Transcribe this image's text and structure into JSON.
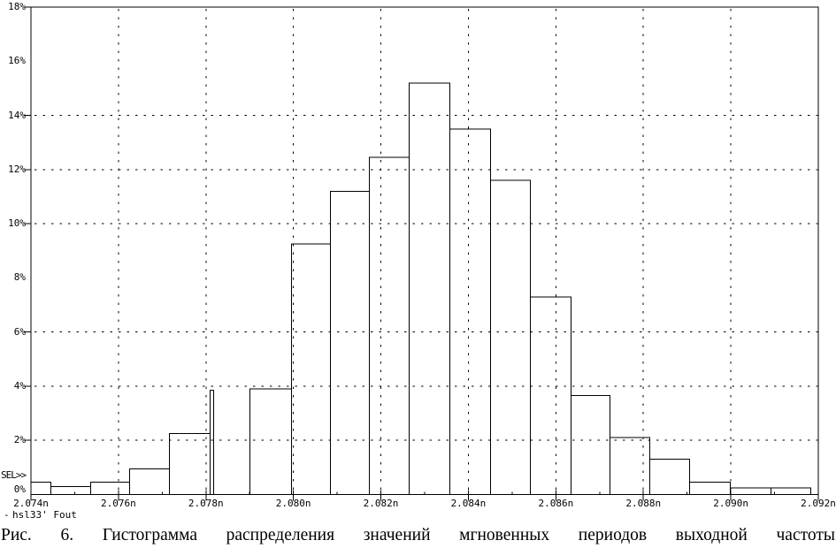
{
  "figure": {
    "sel_label": "SEL>>",
    "trace_legend": {
      "marker": "-",
      "label": "hsl33' Fout"
    },
    "caption": "Рис. 6. Гистограмма распределения значений мгновенных периодов выходной частоты"
  },
  "chart_data": {
    "type": "bar",
    "subtype": "histogram-outline",
    "title": "",
    "xlabel": "",
    "ylabel": "",
    "x_unit": "n",
    "xlim": [
      2.074,
      2.092
    ],
    "ylim_pct": [
      0,
      18
    ],
    "grid": "dashed",
    "legend_position": "bottom-left",
    "x_ticks": [
      {
        "value": 2.074,
        "label": "2.074n"
      },
      {
        "value": 2.076,
        "label": "2.076n"
      },
      {
        "value": 2.078,
        "label": "2.078n"
      },
      {
        "value": 2.08,
        "label": "2.080n"
      },
      {
        "value": 2.082,
        "label": "2.082n"
      },
      {
        "value": 2.084,
        "label": "2.084n"
      },
      {
        "value": 2.086,
        "label": "2.086n"
      },
      {
        "value": 2.088,
        "label": "2.088n"
      },
      {
        "value": 2.09,
        "label": "2.090n"
      },
      {
        "value": 2.092,
        "label": "2.092n"
      }
    ],
    "x_minor_ticks": [
      2.075,
      2.077,
      2.079,
      2.081,
      2.083,
      2.085,
      2.087,
      2.089,
      2.091
    ],
    "y_ticks": [
      {
        "pct": 18,
        "label": "18%"
      },
      {
        "pct": 16,
        "label": "16%"
      },
      {
        "pct": 14,
        "label": "14%"
      },
      {
        "pct": 12,
        "label": "12%"
      },
      {
        "pct": 10,
        "label": "10%"
      },
      {
        "pct": 8,
        "label": "8%"
      },
      {
        "pct": 6,
        "label": "6%"
      },
      {
        "pct": 4,
        "label": "4%"
      },
      {
        "pct": 2,
        "label": "2%"
      },
      {
        "pct": 0,
        "label": "0%"
      }
    ],
    "y_tick_marks_pct": [
      18,
      14,
      12,
      10,
      6,
      4,
      2
    ],
    "h_gridlines_pct": [
      14,
      12,
      10,
      6,
      4,
      2
    ],
    "v_gridlines": [
      2.076,
      2.078,
      2.08,
      2.082,
      2.084,
      2.086,
      2.088,
      2.09
    ],
    "bins": [
      {
        "x0": 2.074,
        "x1": 2.07445,
        "pct": 0.45
      },
      {
        "x0": 2.07445,
        "x1": 2.07537,
        "pct": 0.3
      },
      {
        "x0": 2.07537,
        "x1": 2.07626,
        "pct": 0.45
      },
      {
        "x0": 2.07626,
        "x1": 2.07717,
        "pct": 0.95
      },
      {
        "x0": 2.07717,
        "x1": 2.0781,
        "pct": 2.25
      },
      {
        "x0": 2.0781,
        "x1": 2.07818,
        "pct": 3.85
      },
      {
        "x0": 2.07818,
        "x1": 2.07901,
        "pct": 0.0
      },
      {
        "x0": 2.07901,
        "x1": 2.07996,
        "pct": 3.9
      },
      {
        "x0": 2.07996,
        "x1": 2.08085,
        "pct": 9.25
      },
      {
        "x0": 2.08085,
        "x1": 2.08174,
        "pct": 11.2
      },
      {
        "x0": 2.08174,
        "x1": 2.08265,
        "pct": 12.45
      },
      {
        "x0": 2.08265,
        "x1": 2.08358,
        "pct": 15.2
      },
      {
        "x0": 2.08358,
        "x1": 2.08451,
        "pct": 13.5
      },
      {
        "x0": 2.08451,
        "x1": 2.08542,
        "pct": 11.6
      },
      {
        "x0": 2.08542,
        "x1": 2.08635,
        "pct": 7.3
      },
      {
        "x0": 2.08635,
        "x1": 2.08724,
        "pct": 3.65
      },
      {
        "x0": 2.08724,
        "x1": 2.08815,
        "pct": 2.1
      },
      {
        "x0": 2.08815,
        "x1": 2.08906,
        "pct": 1.3
      },
      {
        "x0": 2.08906,
        "x1": 2.08999,
        "pct": 0.45
      },
      {
        "x0": 2.08999,
        "x1": 2.09092,
        "pct": 0.25
      },
      {
        "x0": 2.09092,
        "x1": 2.09183,
        "pct": 0.25
      }
    ]
  }
}
